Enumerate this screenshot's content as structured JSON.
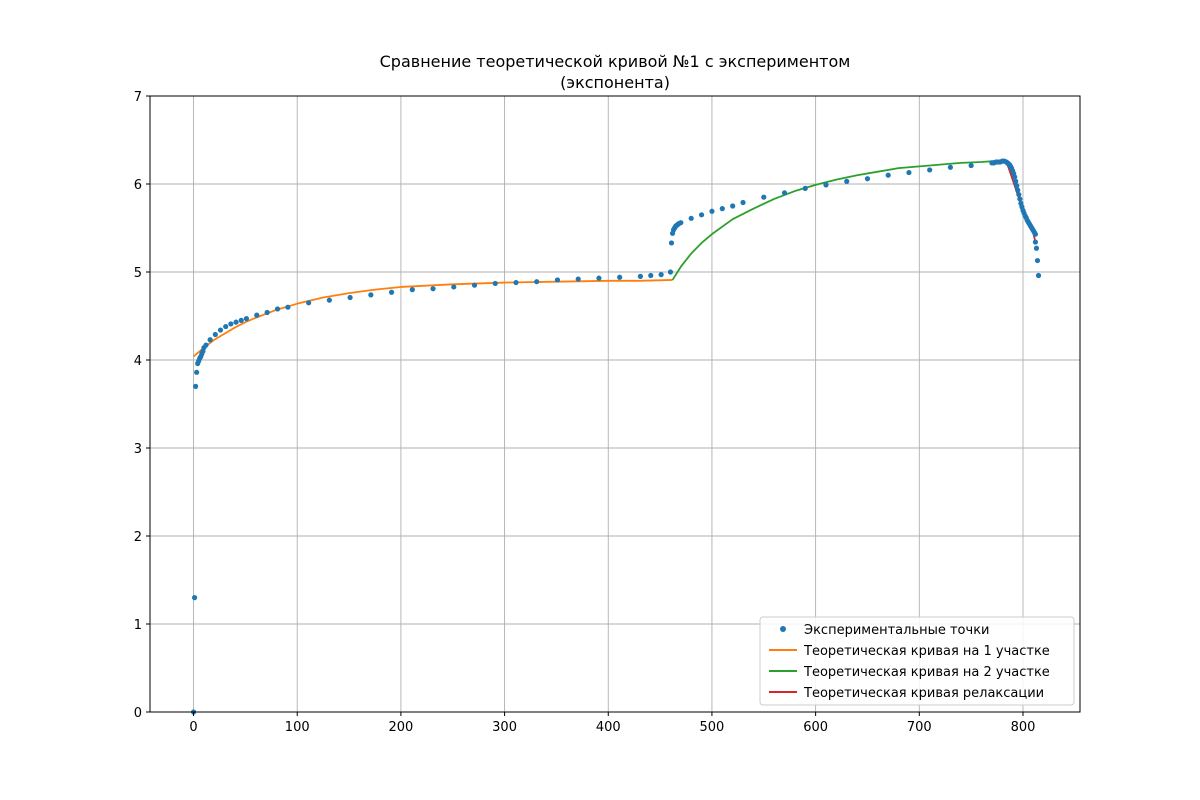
{
  "chart_data": {
    "type": "line",
    "title_line1": "Сравнение теоретической кривой №1 с экспериментом",
    "title_line2": "(экспонента)",
    "xlabel": "",
    "ylabel": "",
    "xlim": [
      -42,
      855
    ],
    "ylim": [
      0,
      7
    ],
    "xticks": [
      0,
      100,
      200,
      300,
      400,
      500,
      600,
      700,
      800
    ],
    "yticks": [
      0,
      1,
      2,
      3,
      4,
      5,
      6,
      7
    ],
    "grid": true,
    "legend_position": "lower-right",
    "series": [
      {
        "name": "Экспериментальные точки",
        "kind": "scatter",
        "color": "#1f77b4",
        "points": [
          [
            0,
            0.0
          ],
          [
            1,
            1.3
          ],
          [
            2,
            3.7
          ],
          [
            3,
            3.86
          ],
          [
            4,
            3.96
          ],
          [
            5,
            3.99
          ],
          [
            6,
            4.02
          ],
          [
            7,
            4.04
          ],
          [
            8,
            4.07
          ],
          [
            9,
            4.1
          ],
          [
            10,
            4.14
          ],
          [
            12,
            4.17
          ],
          [
            16,
            4.23
          ],
          [
            21,
            4.29
          ],
          [
            26,
            4.34
          ],
          [
            31,
            4.38
          ],
          [
            36,
            4.41
          ],
          [
            41,
            4.43
          ],
          [
            46,
            4.45
          ],
          [
            51,
            4.47
          ],
          [
            61,
            4.51
          ],
          [
            71,
            4.54
          ],
          [
            81,
            4.58
          ],
          [
            91,
            4.6
          ],
          [
            111,
            4.65
          ],
          [
            131,
            4.68
          ],
          [
            151,
            4.71
          ],
          [
            171,
            4.74
          ],
          [
            191,
            4.77
          ],
          [
            211,
            4.8
          ],
          [
            231,
            4.81
          ],
          [
            251,
            4.83
          ],
          [
            271,
            4.85
          ],
          [
            291,
            4.87
          ],
          [
            311,
            4.88
          ],
          [
            331,
            4.89
          ],
          [
            351,
            4.91
          ],
          [
            371,
            4.92
          ],
          [
            391,
            4.93
          ],
          [
            411,
            4.94
          ],
          [
            431,
            4.95
          ],
          [
            441,
            4.96
          ],
          [
            451,
            4.97
          ],
          [
            460,
            5.0
          ],
          [
            461,
            5.33
          ],
          [
            462,
            5.44
          ],
          [
            463,
            5.48
          ],
          [
            464,
            5.5
          ],
          [
            465,
            5.52
          ],
          [
            466,
            5.53
          ],
          [
            467,
            5.54
          ],
          [
            468,
            5.55
          ],
          [
            470,
            5.56
          ],
          [
            480,
            5.61
          ],
          [
            490,
            5.65
          ],
          [
            500,
            5.69
          ],
          [
            510,
            5.72
          ],
          [
            520,
            5.75
          ],
          [
            530,
            5.79
          ],
          [
            550,
            5.85
          ],
          [
            570,
            5.9
          ],
          [
            590,
            5.95
          ],
          [
            610,
            5.99
          ],
          [
            630,
            6.03
          ],
          [
            650,
            6.06
          ],
          [
            670,
            6.1
          ],
          [
            690,
            6.13
          ],
          [
            710,
            6.16
          ],
          [
            730,
            6.19
          ],
          [
            750,
            6.21
          ],
          [
            770,
            6.24
          ],
          [
            772,
            6.24
          ],
          [
            774,
            6.25
          ],
          [
            776,
            6.25
          ],
          [
            778,
            6.25
          ],
          [
            780,
            6.26
          ],
          [
            782,
            6.26
          ],
          [
            784,
            6.25
          ],
          [
            785,
            6.24
          ],
          [
            786,
            6.23
          ],
          [
            787,
            6.22
          ],
          [
            788,
            6.2
          ],
          [
            789,
            6.18
          ],
          [
            790,
            6.15
          ],
          [
            791,
            6.12
          ],
          [
            792,
            6.08
          ],
          [
            793,
            6.03
          ],
          [
            794,
            5.98
          ],
          [
            795,
            5.93
          ],
          [
            796,
            5.88
          ],
          [
            797,
            5.83
          ],
          [
            798,
            5.78
          ],
          [
            799,
            5.74
          ],
          [
            800,
            5.7
          ],
          [
            801,
            5.67
          ],
          [
            802,
            5.64
          ],
          [
            803,
            5.62
          ],
          [
            804,
            5.59
          ],
          [
            805,
            5.57
          ],
          [
            806,
            5.55
          ],
          [
            807,
            5.53
          ],
          [
            808,
            5.51
          ],
          [
            809,
            5.49
          ],
          [
            810,
            5.47
          ],
          [
            811,
            5.45
          ],
          [
            812,
            5.43
          ],
          [
            812,
            5.34
          ],
          [
            813,
            5.27
          ],
          [
            814,
            5.13
          ],
          [
            815,
            4.96
          ]
        ]
      },
      {
        "name": "Теоретическая кривая на 1 участке",
        "kind": "line",
        "color": "#ff7f0e",
        "points": [
          [
            0,
            4.04
          ],
          [
            5,
            4.09
          ],
          [
            10,
            4.14
          ],
          [
            20,
            4.23
          ],
          [
            30,
            4.3
          ],
          [
            40,
            4.37
          ],
          [
            50,
            4.43
          ],
          [
            60,
            4.48
          ],
          [
            80,
            4.57
          ],
          [
            100,
            4.64
          ],
          [
            125,
            4.71
          ],
          [
            150,
            4.76
          ],
          [
            175,
            4.8
          ],
          [
            200,
            4.83
          ],
          [
            250,
            4.86
          ],
          [
            300,
            4.88
          ],
          [
            350,
            4.89
          ],
          [
            400,
            4.9
          ],
          [
            430,
            4.9
          ],
          [
            462,
            4.91
          ]
        ]
      },
      {
        "name": "Теоретическая кривая на 2 участке",
        "kind": "line",
        "color": "#2ca02c",
        "points": [
          [
            462,
            4.91
          ],
          [
            470,
            5.06
          ],
          [
            480,
            5.21
          ],
          [
            490,
            5.33
          ],
          [
            500,
            5.43
          ],
          [
            520,
            5.6
          ],
          [
            540,
            5.72
          ],
          [
            560,
            5.83
          ],
          [
            580,
            5.92
          ],
          [
            600,
            5.99
          ],
          [
            620,
            6.05
          ],
          [
            640,
            6.1
          ],
          [
            660,
            6.14
          ],
          [
            680,
            6.18
          ],
          [
            700,
            6.2
          ],
          [
            720,
            6.22
          ],
          [
            740,
            6.24
          ],
          [
            760,
            6.25
          ],
          [
            782,
            6.27
          ]
        ]
      },
      {
        "name": "Теоретическая кривая релаксации",
        "kind": "line",
        "color": "#d62728",
        "points": [
          [
            782,
            6.27
          ],
          [
            784,
            6.24
          ],
          [
            786,
            6.19
          ],
          [
            788,
            6.12
          ],
          [
            790,
            6.05
          ],
          [
            792,
            5.98
          ],
          [
            794,
            5.91
          ],
          [
            796,
            5.84
          ],
          [
            798,
            5.77
          ],
          [
            800,
            5.71
          ],
          [
            802,
            5.65
          ],
          [
            804,
            5.59
          ],
          [
            806,
            5.54
          ],
          [
            808,
            5.49
          ],
          [
            810,
            5.44
          ],
          [
            812,
            5.34
          ]
        ]
      }
    ]
  }
}
